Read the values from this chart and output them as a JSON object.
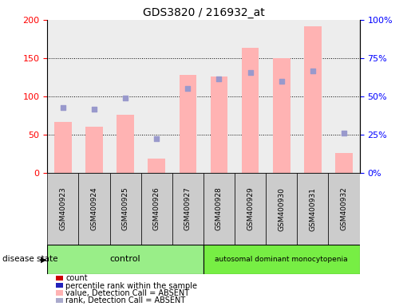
{
  "title": "GDS3820 / 216932_at",
  "samples": [
    "GSM400923",
    "GSM400924",
    "GSM400925",
    "GSM400926",
    "GSM400927",
    "GSM400928",
    "GSM400929",
    "GSM400930",
    "GSM400931",
    "GSM400932"
  ],
  "pink_bars": [
    67,
    60,
    76,
    19,
    128,
    126,
    163,
    150,
    192,
    26
  ],
  "blue_squares_left_axis": [
    85,
    83,
    98,
    45,
    110,
    123,
    131,
    120,
    133,
    52
  ],
  "control_count": 5,
  "disease_count": 5,
  "control_label": "control",
  "disease_label": "autosomal dominant monocytopenia",
  "disease_state_label": "disease state",
  "ylim_left": [
    0,
    200
  ],
  "ylim_right": [
    0,
    100
  ],
  "yticks_left": [
    0,
    50,
    100,
    150,
    200
  ],
  "ytick_labels_left": [
    "0",
    "50",
    "100",
    "150",
    "200"
  ],
  "yticks_right": [
    0,
    25,
    50,
    75,
    100
  ],
  "ytick_labels_right": [
    "0%",
    "25%",
    "50%",
    "75%",
    "100%"
  ],
  "pink_bar_color": "#FFB3B3",
  "blue_sq_color": "#9999CC",
  "col_bg_color": "#CCCCCC",
  "control_color": "#99EE88",
  "disease_color": "#77EE44",
  "legend_colors": [
    "#CC0000",
    "#2222BB",
    "#FFB3B3",
    "#AAAACC"
  ],
  "legend_labels": [
    "count",
    "percentile rank within the sample",
    "value, Detection Call = ABSENT",
    "rank, Detection Call = ABSENT"
  ]
}
